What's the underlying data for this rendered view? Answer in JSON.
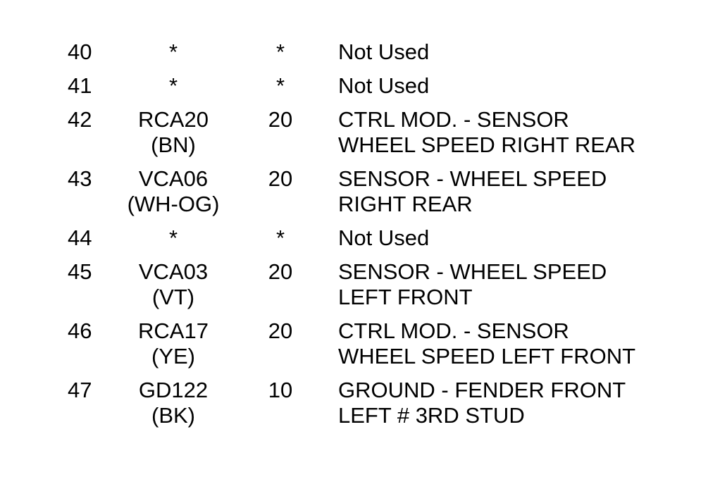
{
  "page": {
    "colors": {
      "background": "#ffffff",
      "text": "#000000"
    }
  },
  "pinout_table": {
    "rows": [
      {
        "pin": "40",
        "circuit": "*",
        "gauge": "*",
        "desc1": "Not Used"
      },
      {
        "pin": "41",
        "circuit": "*",
        "gauge": "*",
        "desc1": "Not Used"
      },
      {
        "pin": "42",
        "circuit": "RCA20",
        "wire_color": "(BN)",
        "gauge": "20",
        "desc1": "CTRL MOD. - SENSOR",
        "desc2": "WHEEL SPEED RIGHT REAR"
      },
      {
        "pin": "43",
        "circuit": "VCA06",
        "wire_color": "(WH-OG)",
        "gauge": "20",
        "desc1": "SENSOR - WHEEL SPEED",
        "desc2": "RIGHT REAR"
      },
      {
        "pin": "44",
        "circuit": "*",
        "gauge": "*",
        "desc1": "Not Used"
      },
      {
        "pin": "45",
        "circuit": "VCA03",
        "wire_color": "(VT)",
        "gauge": "20",
        "desc1": "SENSOR - WHEEL SPEED",
        "desc2": "LEFT FRONT"
      },
      {
        "pin": "46",
        "circuit": "RCA17",
        "wire_color": "(YE)",
        "gauge": "20",
        "desc1": "CTRL MOD. - SENSOR",
        "desc2": "WHEEL SPEED LEFT FRONT"
      },
      {
        "pin": "47",
        "circuit": "GD122",
        "wire_color": "(BK)",
        "gauge": "10",
        "desc1": "GROUND - FENDER FRONT",
        "desc2": "LEFT # 3RD STUD"
      }
    ]
  }
}
